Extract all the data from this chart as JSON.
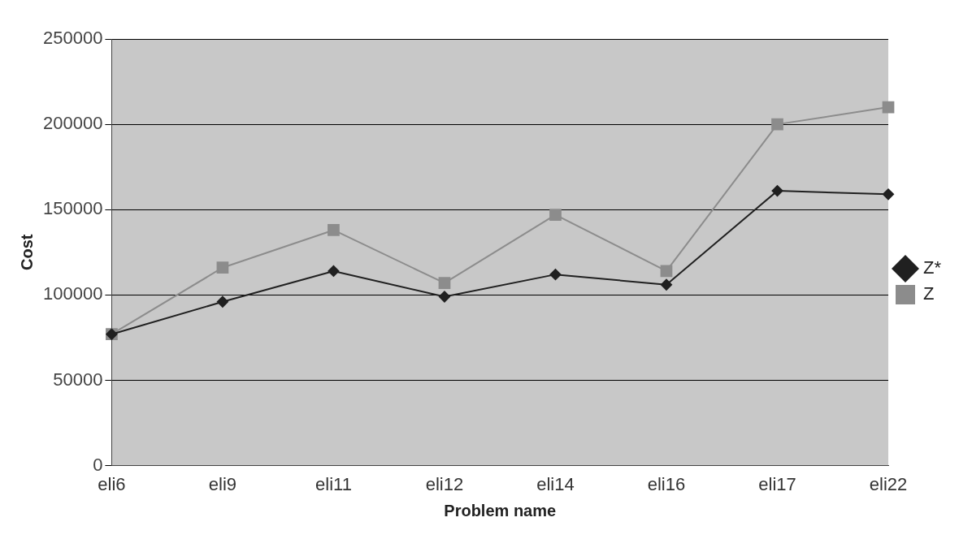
{
  "chart_data": {
    "type": "line",
    "xlabel": "Problem name",
    "ylabel": "Cost",
    "categories": [
      "eli6",
      "eli9",
      "eli11",
      "eli12",
      "eli14",
      "eli16",
      "eli17",
      "eli22"
    ],
    "series": [
      {
        "name": "Z*",
        "color": "#202020",
        "marker": "diamond",
        "values": [
          77000,
          96000,
          114000,
          99000,
          112000,
          106000,
          161000,
          159000
        ]
      },
      {
        "name": "Z",
        "color": "#8c8c8c",
        "marker": "square",
        "values": [
          77000,
          116000,
          138000,
          107000,
          147000,
          114000,
          200000,
          210000
        ]
      }
    ],
    "ylim": [
      0,
      250000
    ],
    "yticks": [
      0,
      50000,
      100000,
      150000,
      200000,
      250000
    ],
    "grid": "y",
    "legend": "right"
  }
}
